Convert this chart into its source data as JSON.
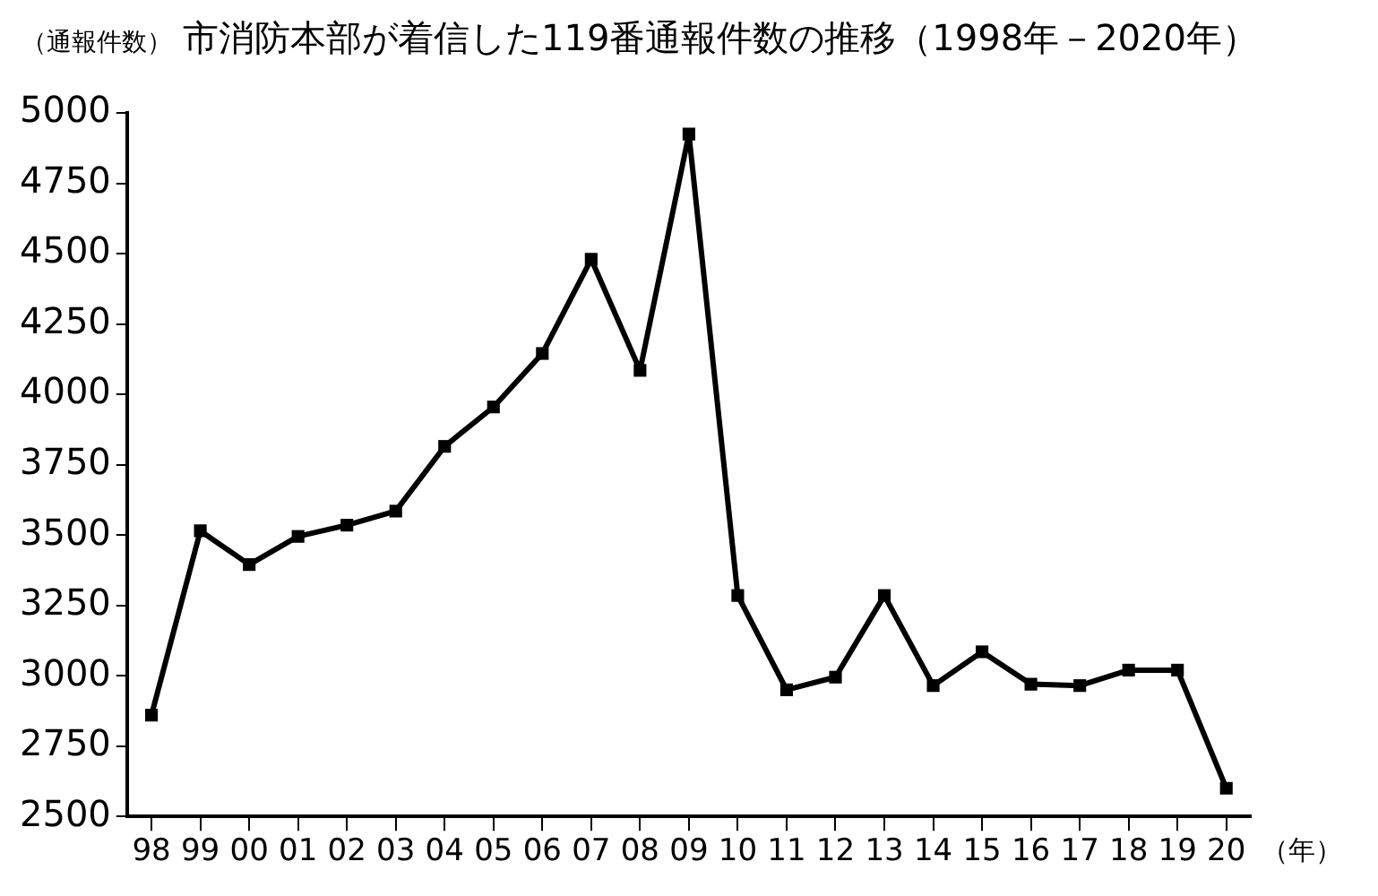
{
  "chart_data": {
    "type": "line",
    "title": "市消防本部が着信した119番通報件数の推移（1998年－2020年）",
    "ylabel": "（通報件数）",
    "xlabel": "（年）",
    "categories": [
      "98",
      "99",
      "00",
      "01",
      "02",
      "03",
      "04",
      "05",
      "06",
      "07",
      "08",
      "09",
      "10",
      "11",
      "12",
      "13",
      "14",
      "15",
      "16",
      "17",
      "18",
      "19",
      "20"
    ],
    "series": [
      {
        "color": "#000000",
        "values": [
          2860,
          3515,
          3395,
          3495,
          3535,
          3585,
          3815,
          3955,
          4145,
          4480,
          4085,
          4925,
          3285,
          2950,
          2995,
          3285,
          2965,
          3085,
          2970,
          2965,
          3020,
          3020,
          2600
        ]
      }
    ],
    "ylim": [
      2500,
      5000
    ],
    "yticks": [
      2500,
      2750,
      3000,
      3250,
      3500,
      3750,
      4000,
      4250,
      4500,
      4750,
      5000
    ],
    "grid": false,
    "legend": false,
    "marker": "square",
    "line_style": "solid"
  }
}
